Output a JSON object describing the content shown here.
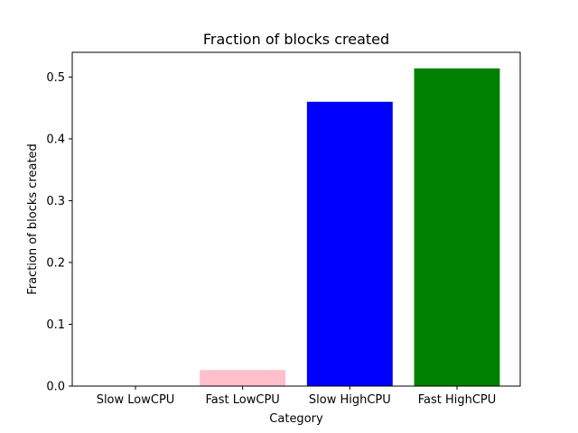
{
  "chart_data": {
    "type": "bar",
    "title": "Fraction of blocks created",
    "xlabel": "Category",
    "ylabel": "Fraction of blocks created",
    "categories": [
      "Slow LowCPU",
      "Fast LowCPU",
      "Slow HighCPU",
      "Fast HighCPU"
    ],
    "values": [
      0.0,
      0.026,
      0.46,
      0.514
    ],
    "colors": [
      "#1f77b4",
      "#ffc0cb",
      "#0000ff",
      "#008000"
    ],
    "ylim": [
      0,
      0.54
    ],
    "yticks": [
      0.0,
      0.1,
      0.2,
      0.3,
      0.4,
      0.5
    ],
    "ytick_labels": [
      "0.0",
      "0.1",
      "0.2",
      "0.3",
      "0.4",
      "0.5"
    ],
    "grid": false,
    "legend": "none"
  }
}
